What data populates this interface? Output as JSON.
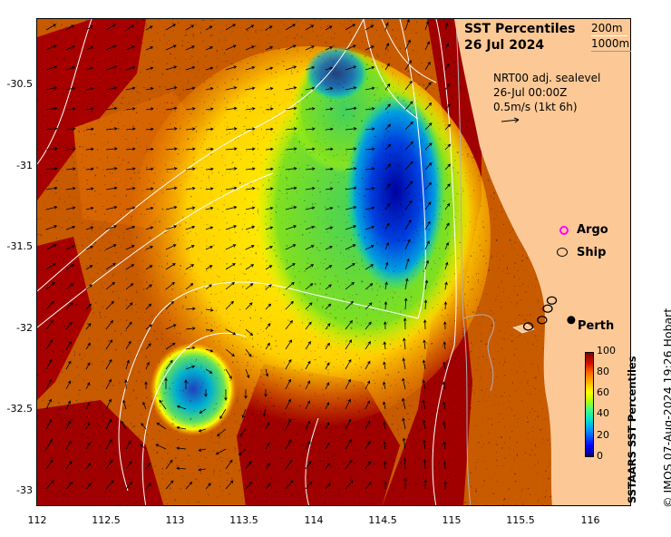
{
  "title": {
    "line1": "SST Percentiles",
    "line2": "26 Jul 2024"
  },
  "contour_legend": {
    "line1": "200m",
    "line2": "1000m"
  },
  "sealevel": {
    "line1": "NRT00 adj. sealevel",
    "line2": "26-Jul 00:00Z",
    "line3": "0.5m/s (1kt 6h)"
  },
  "legend": {
    "argo": "Argo",
    "ship": "Ship"
  },
  "city": {
    "name": "Perth",
    "lon": 115.86,
    "lat": -31.95
  },
  "axes": {
    "x_ticks": [
      "112",
      "112.5",
      "113",
      "113.5",
      "114",
      "114.5",
      "115",
      "115.5",
      "116"
    ],
    "y_ticks": [
      "-30.5",
      "-31",
      "-31.5",
      "-32",
      "-32.5",
      "-33"
    ],
    "lon_range": [
      112,
      116.3
    ],
    "lat_range": [
      -33.1,
      -30.1
    ]
  },
  "colorbar": {
    "title": "SSTAARS SST Percentiles",
    "ticks": [
      "100",
      "80",
      "60",
      "40",
      "20",
      "0"
    ],
    "colors": [
      "#00007f",
      "#0000ff",
      "#0080ff",
      "#00e0e0",
      "#40ff80",
      "#c0ff00",
      "#ffff00",
      "#ffc000",
      "#ff8000",
      "#ff3000",
      "#c00000",
      "#800000"
    ]
  },
  "colors": {
    "land": "#fcc996",
    "contour": "#ffffff",
    "argo_marker": "#ff00ff",
    "ship_marker": "#000000"
  },
  "ships": [
    {
      "lon": 115.55,
      "lat": -31.99
    },
    {
      "lon": 115.65,
      "lat": -31.95
    },
    {
      "lon": 115.69,
      "lat": -31.88
    },
    {
      "lon": 115.72,
      "lat": -31.83
    }
  ],
  "credit": "© IMOS 07-Aug-2024 19:26 Hobart"
}
